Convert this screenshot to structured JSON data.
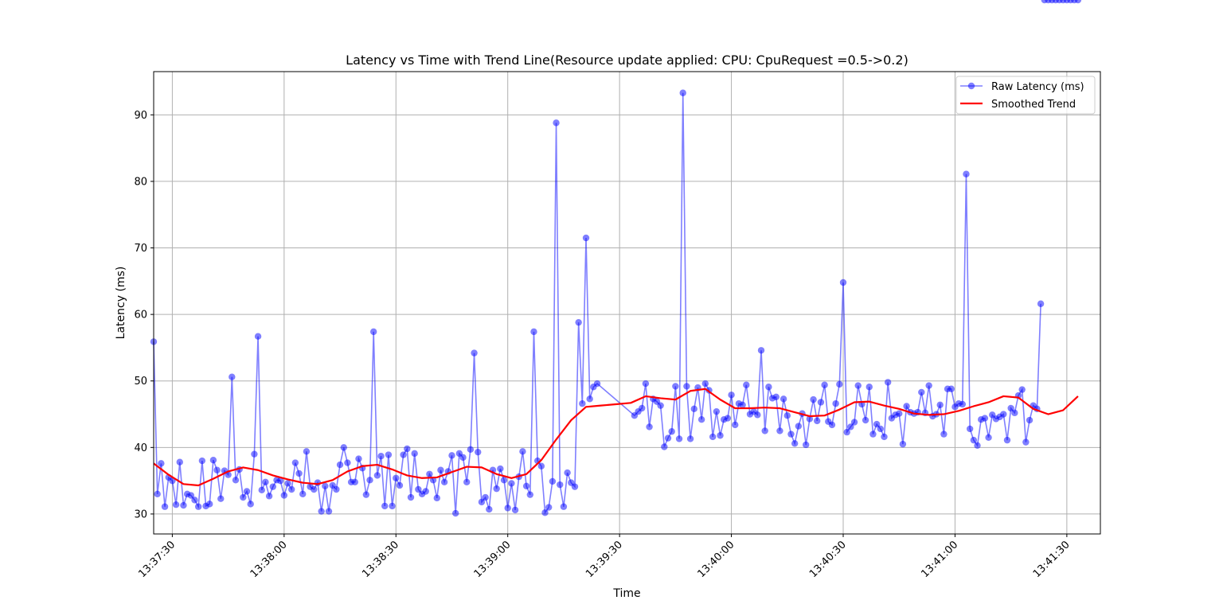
{
  "chart_data": {
    "type": "line",
    "title": "Latency vs Time with Trend Line(Resource update applied: CPU: CpuRequest =0.5->0.2)",
    "xlabel": "Time",
    "ylabel": "Latency (ms)",
    "x_start": "13:37:25",
    "x_tick_labels": [
      "13:37:30",
      "13:38:00",
      "13:38:30",
      "13:39:00",
      "13:39:30",
      "13:40:00",
      "13:40:30",
      "13:41:00",
      "13:41:30"
    ],
    "y_ticks": [
      30,
      40,
      50,
      60,
      70,
      80,
      90
    ],
    "xlim": [
      "13:37:25",
      "13:41:39"
    ],
    "ylim": [
      27,
      96.5
    ],
    "grid": true,
    "legend_position": "top-right",
    "series": [
      {
        "name": "Raw Latency (ms)",
        "color": "#0000ff",
        "marker": "circle",
        "x_seconds_from_start": [
          0,
          1,
          2,
          3,
          4,
          5,
          6,
          7,
          8,
          9,
          10,
          11,
          12,
          13,
          14,
          15,
          16,
          17,
          18,
          19,
          20,
          21,
          22,
          23,
          24,
          25,
          26,
          27,
          28,
          29,
          30,
          31,
          32,
          33,
          34,
          35,
          36,
          37,
          38,
          39,
          40,
          41,
          42,
          43,
          44,
          45,
          46,
          47,
          48,
          49,
          50,
          51,
          52,
          53,
          54,
          55,
          56,
          57,
          58,
          59,
          60,
          61,
          62,
          63,
          64,
          65,
          66,
          67,
          68,
          69,
          70,
          71,
          72,
          73,
          74,
          75,
          76,
          77,
          78,
          79,
          80,
          81,
          82,
          83,
          84,
          85,
          86,
          87,
          88,
          89,
          90,
          91,
          92,
          93,
          94,
          95,
          96,
          97,
          98,
          99,
          100,
          101,
          102,
          103,
          104,
          105,
          106,
          107,
          108,
          109,
          110,
          111,
          112,
          113,
          114,
          115,
          116,
          117,
          118,
          119,
          129,
          130,
          131,
          132,
          133,
          134,
          135,
          136,
          137,
          138,
          139,
          140,
          141,
          142,
          143,
          144,
          145,
          146,
          147,
          148,
          149,
          150,
          151,
          152,
          153,
          154,
          155,
          156,
          157,
          158,
          159,
          160,
          161,
          162,
          163,
          164,
          165,
          166,
          167,
          168,
          169,
          170,
          171,
          172,
          173,
          174,
          175,
          176,
          177,
          178,
          179,
          180,
          181,
          182,
          183,
          184,
          185,
          186,
          187,
          188,
          189,
          190,
          191,
          192,
          193,
          194,
          195,
          196,
          197,
          198,
          199,
          200,
          201,
          202,
          203,
          204,
          205,
          206,
          207,
          208,
          209,
          210,
          211,
          212,
          213,
          214,
          215,
          216,
          217,
          218,
          219,
          220,
          221,
          222,
          223,
          224,
          225,
          226,
          227,
          228,
          229,
          230,
          231,
          232,
          233,
          234,
          235,
          236,
          237,
          238,
          239,
          240,
          241,
          242,
          243,
          244,
          245,
          246,
          247,
          248
        ],
        "y": [
          55.9,
          33.0,
          37.6,
          31.1,
          35.5,
          35.0,
          31.4,
          37.8,
          31.3,
          33.0,
          32.8,
          32.1,
          31.1,
          38.0,
          31.2,
          31.5,
          38.1,
          36.6,
          32.3,
          36.5,
          35.9,
          50.6,
          35.1,
          36.7,
          32.5,
          33.4,
          31.5,
          39.0,
          56.7,
          33.6,
          34.8,
          32.7,
          34.1,
          35.1,
          35.0,
          32.8,
          34.6,
          33.7,
          37.7,
          36.1,
          33.0,
          39.4,
          34.1,
          33.7,
          34.7,
          30.4,
          34.2,
          30.4,
          34.3,
          33.7,
          37.4,
          40.0,
          37.7,
          34.8,
          34.8,
          38.3,
          36.9,
          32.9,
          35.1,
          57.4,
          35.8,
          38.7,
          31.2,
          38.9,
          31.2,
          35.4,
          34.3,
          38.9,
          39.8,
          32.5,
          39.1,
          33.7,
          33.0,
          33.4,
          36.0,
          35.1,
          32.4,
          36.6,
          34.8,
          36.4,
          38.8,
          30.1,
          39.1,
          38.5,
          34.8,
          39.7,
          54.2,
          39.3,
          31.8,
          32.5,
          30.7,
          36.6,
          33.8,
          36.8,
          35.1,
          30.9,
          34.6,
          30.6,
          35.6,
          39.4,
          34.2,
          32.9,
          57.4,
          38.0,
          37.2,
          30.2,
          31.0,
          34.9,
          88.8,
          34.4,
          31.1,
          36.2,
          34.7,
          34.1,
          58.8,
          46.6,
          71.5,
          47.3,
          49.1,
          49.6,
          44.8,
          45.4,
          45.9,
          49.6,
          43.1,
          47.3,
          46.9,
          46.3,
          40.1,
          41.4,
          42.4,
          49.2,
          41.3,
          93.3,
          49.2,
          41.3,
          45.8,
          49.0,
          44.2,
          49.6,
          48.6,
          41.6,
          45.4,
          41.8,
          44.2,
          44.4,
          47.9,
          43.4,
          46.6,
          46.4,
          49.4,
          45.0,
          45.4,
          44.9,
          54.6,
          42.5,
          49.1,
          47.4,
          47.6,
          42.5,
          47.3,
          44.8,
          42.0,
          40.6,
          43.2,
          45.1,
          40.4,
          44.3,
          47.2,
          44.0,
          46.8,
          49.4,
          43.9,
          43.4,
          46.6,
          49.5,
          64.8,
          42.3,
          43.1,
          43.8,
          49.3,
          46.5,
          44.1,
          49.1,
          42.0,
          43.5,
          42.8,
          41.6,
          49.8,
          44.4,
          44.9,
          45.1,
          40.5,
          46.2,
          45.3,
          45.1,
          45.3,
          48.3,
          45.2,
          49.3,
          44.7,
          45.0,
          46.4,
          42.0,
          48.8,
          48.8,
          46.1,
          46.6,
          46.5,
          81.1,
          42.8,
          41.1,
          40.3,
          44.2,
          44.4,
          41.5,
          44.9,
          44.3,
          44.6,
          45.0,
          41.1,
          45.9,
          45.2,
          47.8,
          48.7,
          40.8,
          44.1,
          46.3,
          45.8,
          61.6
        ]
      },
      {
        "name": "Smoothed Trend",
        "color": "#ff0000",
        "x_seconds_from_start": [
          0,
          4,
          8,
          12,
          16,
          20,
          24,
          28,
          32,
          36,
          40,
          44,
          48,
          52,
          56,
          60,
          64,
          68,
          72,
          76,
          80,
          84,
          88,
          92,
          96,
          100,
          104,
          108,
          112,
          116,
          120,
          124,
          128,
          132,
          136,
          140,
          144,
          148,
          152,
          156,
          160,
          164,
          168,
          172,
          176,
          180,
          184,
          188,
          192,
          196,
          200,
          204,
          208,
          212,
          216,
          220,
          224,
          228,
          232,
          236,
          240,
          244,
          248
        ],
        "y": [
          37.6,
          35.9,
          34.5,
          34.3,
          35.3,
          36.4,
          37.0,
          36.6,
          35.8,
          35.2,
          34.7,
          34.5,
          35.1,
          36.4,
          37.2,
          37.4,
          36.7,
          35.8,
          35.4,
          35.5,
          36.3,
          37.1,
          37.0,
          36.0,
          35.4,
          36.0,
          38.1,
          41.2,
          44.1,
          46.1,
          46.3,
          46.5,
          46.7,
          47.7,
          47.4,
          47.2,
          48.5,
          48.8,
          47.2,
          45.9,
          45.9,
          46.0,
          45.9,
          45.3,
          44.7,
          44.8,
          45.7,
          46.8,
          46.9,
          46.3,
          45.8,
          45.1,
          44.9,
          45.0,
          45.5,
          46.2,
          46.8,
          47.7,
          47.5,
          45.8,
          45.0,
          45.6,
          47.7
        ]
      }
    ]
  }
}
